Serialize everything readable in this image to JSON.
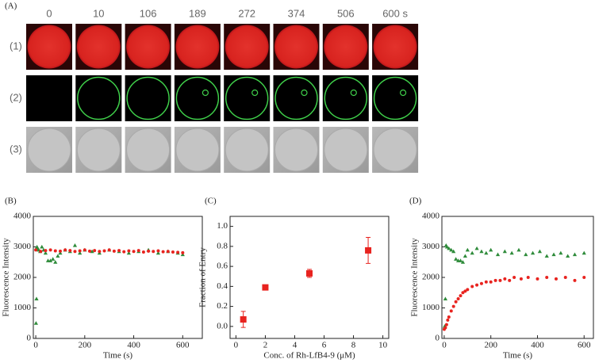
{
  "figure": {
    "panel_label": "(A)",
    "times": [
      "0",
      "10",
      "106",
      "189",
      "272",
      "374",
      "506",
      "600 s"
    ],
    "rows": [
      "(1)",
      "(2)",
      "(3)"
    ]
  },
  "chart_data": [
    {
      "type": "scatter",
      "panel_label": "(B)",
      "xlabel": "Time (s)",
      "ylabel": "Fluorescence Intensity",
      "xlim": [
        -10,
        680
      ],
      "ylim": [
        0,
        4000
      ],
      "xticks": [
        0,
        200,
        400,
        600
      ],
      "yticks": [
        0,
        1000,
        2000,
        3000,
        4000
      ],
      "series": [
        {
          "color": "#2e8b3a",
          "marker": "triangle",
          "x": [
            1,
            3,
            5,
            8,
            12,
            18,
            25,
            32,
            40,
            50,
            60,
            70,
            80,
            90,
            100,
            120,
            140,
            160,
            180,
            200,
            230,
            260,
            300,
            340,
            380,
            420,
            460,
            500,
            540,
            580,
            600
          ],
          "values": [
            500,
            1300,
            3000,
            2950,
            2900,
            2850,
            3000,
            2900,
            2800,
            2550,
            2550,
            2600,
            2500,
            2700,
            2800,
            2900,
            2850,
            3050,
            2800,
            2900,
            2850,
            2800,
            2900,
            2850,
            2800,
            2850,
            2900,
            2800,
            2850,
            2800,
            2750
          ]
        },
        {
          "color": "#e8231f",
          "marker": "circle",
          "x": [
            0,
            20,
            40,
            60,
            80,
            100,
            120,
            140,
            160,
            180,
            200,
            220,
            240,
            260,
            280,
            300,
            320,
            340,
            360,
            380,
            400,
            420,
            440,
            460,
            480,
            500,
            520,
            540,
            560,
            580,
            600
          ],
          "values": [
            2900,
            2850,
            2880,
            2900,
            2870,
            2860,
            2900,
            2880,
            2850,
            2870,
            2900,
            2860,
            2880,
            2850,
            2870,
            2900,
            2860,
            2880,
            2840,
            2870,
            2850,
            2880,
            2830,
            2860,
            2850,
            2870,
            2840,
            2850,
            2830,
            2820,
            2810
          ]
        }
      ]
    },
    {
      "type": "scatter",
      "panel_label": "(C)",
      "xlabel": "Conc. of Rh-LfB4-9 (μM)",
      "ylabel": "Fraction of Entry",
      "xlim": [
        -0.4,
        10.4
      ],
      "ylim": [
        -0.12,
        1.1
      ],
      "xticks": [
        0,
        2,
        4,
        6,
        8,
        10
      ],
      "yticks": [
        {
          "value": 0,
          "label": "0.0"
        },
        0.2,
        0.4,
        0.6,
        0.8,
        {
          "value": 1,
          "label": "1.0"
        }
      ],
      "series": [
        {
          "color": "#e8231f",
          "marker": "square",
          "x": [
            0.5,
            2,
            5,
            9
          ],
          "values": [
            0.07,
            0.39,
            0.53,
            0.76
          ],
          "errors": [
            0.08,
            0.02,
            0.04,
            0.13
          ]
        }
      ]
    },
    {
      "type": "scatter",
      "panel_label": "(D)",
      "xlabel": "Time (s)",
      "ylabel": "Fluorescence Intensity",
      "xlim": [
        -10,
        640
      ],
      "ylim": [
        0,
        4000
      ],
      "xticks": [
        0,
        200,
        400,
        600
      ],
      "yticks": [
        0,
        1000,
        2000,
        3000,
        4000
      ],
      "series": [
        {
          "color": "#2e8b3a",
          "marker": "triangle",
          "x": [
            2,
            5,
            8,
            12,
            20,
            30,
            40,
            50,
            60,
            70,
            80,
            90,
            100,
            120,
            140,
            160,
            180,
            200,
            230,
            260,
            290,
            320,
            350,
            380,
            410,
            440,
            470,
            500,
            530,
            560,
            600
          ],
          "values": [
            400,
            1300,
            3050,
            3000,
            2950,
            2900,
            2850,
            2600,
            2550,
            2550,
            2500,
            2700,
            2900,
            2800,
            2950,
            2850,
            2800,
            2900,
            2750,
            2850,
            2800,
            2900,
            2750,
            2800,
            2850,
            2700,
            2750,
            2800,
            2700,
            2750,
            2800
          ]
        },
        {
          "color": "#e8231f",
          "marker": "circle",
          "x": [
            0,
            5,
            10,
            15,
            20,
            30,
            40,
            50,
            60,
            70,
            80,
            90,
            100,
            120,
            140,
            160,
            180,
            200,
            220,
            240,
            260,
            280,
            300,
            330,
            360,
            400,
            440,
            480,
            520,
            560,
            600
          ],
          "values": [
            300,
            350,
            450,
            600,
            700,
            900,
            1050,
            1200,
            1300,
            1400,
            1500,
            1550,
            1600,
            1700,
            1750,
            1800,
            1850,
            1850,
            1900,
            1900,
            1950,
            1900,
            2000,
            1950,
            2000,
            1950,
            2000,
            1950,
            2000,
            1900,
            2000
          ]
        }
      ]
    }
  ]
}
